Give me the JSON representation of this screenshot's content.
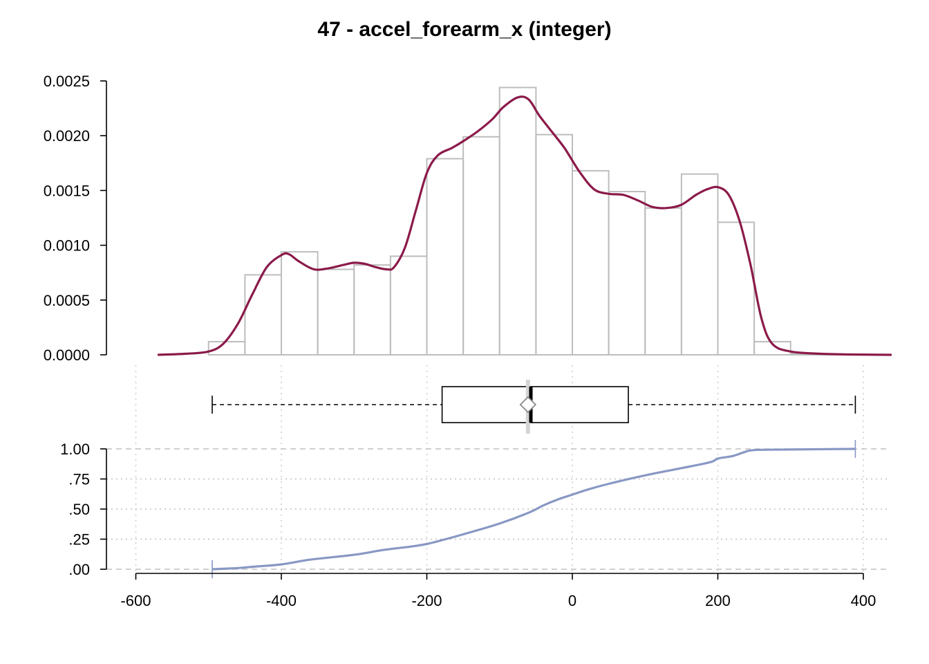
{
  "chart_data": {
    "title": "47 - accel_forearm_x (integer)",
    "x_ticks": [
      "-600",
      "-400",
      "-200",
      "0",
      "200",
      "400"
    ],
    "x_tick_values": [
      -600,
      -400,
      -200,
      0,
      200,
      400
    ],
    "xlim": [
      -600,
      400
    ],
    "histogram": {
      "type": "bar",
      "bin_edges": [
        -500,
        -450,
        -400,
        -350,
        -300,
        -250,
        -200,
        -150,
        -100,
        -50,
        0,
        50,
        100,
        150,
        200,
        250,
        300,
        350,
        400
      ],
      "values": [
        0.00012,
        0.00073,
        0.00094,
        0.00078,
        0.00082,
        0.0009,
        0.00179,
        0.00199,
        0.00244,
        0.00201,
        0.00168,
        0.00149,
        0.00134,
        0.00165,
        0.00121,
        0.00012,
        1e-05,
        5e-06
      ],
      "ylim": [
        0,
        0.0025
      ],
      "y_ticks": [
        "0.0000",
        "0.0005",
        "0.0010",
        "0.0015",
        "0.0020",
        "0.0025"
      ],
      "y_tick_values": [
        0,
        0.0005,
        0.001,
        0.0015,
        0.002,
        0.0025
      ]
    },
    "density": {
      "type": "line",
      "x": [
        -570,
        -530,
        -500,
        -480,
        -460,
        -440,
        -420,
        -400,
        -390,
        -375,
        -355,
        -335,
        -315,
        -300,
        -285,
        -270,
        -255,
        -245,
        -230,
        -215,
        -200,
        -185,
        -165,
        -150,
        -130,
        -110,
        -95,
        -75,
        -60,
        -45,
        -25,
        -10,
        10,
        30,
        50,
        70,
        90,
        110,
        130,
        150,
        170,
        185,
        200,
        215,
        230,
        245,
        260,
        275,
        300,
        340,
        380,
        440
      ],
      "y": [
        0,
        1e-05,
        3e-05,
        0.0001,
        0.00028,
        0.00055,
        0.0008,
        0.00091,
        0.00092,
        0.00085,
        0.00078,
        0.00079,
        0.00082,
        0.00084,
        0.00083,
        0.0008,
        0.00078,
        0.0008,
        0.00098,
        0.00132,
        0.00166,
        0.00182,
        0.00189,
        0.00195,
        0.00204,
        0.00215,
        0.00226,
        0.00235,
        0.00233,
        0.00218,
        0.00201,
        0.00188,
        0.00167,
        0.00151,
        0.00147,
        0.00146,
        0.00141,
        0.00135,
        0.00134,
        0.00137,
        0.00146,
        0.00151,
        0.00153,
        0.00146,
        0.00122,
        0.00082,
        0.00033,
        0.0001,
        3e-05,
        1e-05,
        3e-06,
        0
      ]
    },
    "boxplot": {
      "type": "box",
      "min": -495,
      "q1": -179,
      "median": -57,
      "mean": -61,
      "q3": 77,
      "max": 389
    },
    "ecdf": {
      "type": "line",
      "x": [
        -495,
        -460,
        -440,
        -400,
        -360,
        -300,
        -260,
        -220,
        -200,
        -180,
        -150,
        -100,
        -60,
        -40,
        -20,
        0,
        20,
        50,
        100,
        150,
        190,
        200,
        220,
        235,
        250,
        300,
        389
      ],
      "y": [
        0,
        0.01,
        0.02,
        0.04,
        0.08,
        0.12,
        0.16,
        0.19,
        0.21,
        0.24,
        0.29,
        0.38,
        0.47,
        0.53,
        0.58,
        0.62,
        0.66,
        0.71,
        0.78,
        0.84,
        0.89,
        0.92,
        0.94,
        0.97,
        0.99,
        0.995,
        1.0
      ],
      "ylim": [
        0,
        1
      ],
      "y_ticks": [
        ".00",
        ".25",
        ".50",
        ".75",
        "1.00"
      ],
      "y_tick_values": [
        0,
        0.25,
        0.5,
        0.75,
        1.0
      ]
    },
    "colors": {
      "density": "#8b1a4a",
      "ecdf": "#8898c4",
      "histogram": "#bdbdbd"
    }
  }
}
